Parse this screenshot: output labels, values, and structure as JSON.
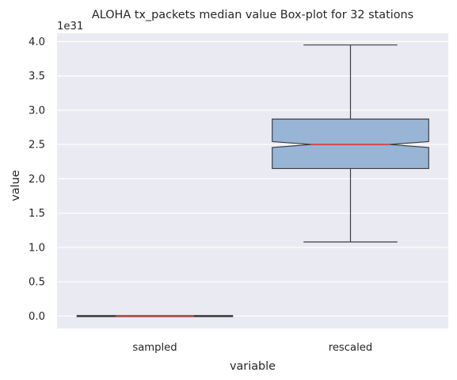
{
  "chart_data": {
    "type": "box",
    "title": "ALOHA tx_packets median value Box-plot for 32 stations",
    "xlabel": "variable",
    "ylabel": "value",
    "offset_text": "1e31",
    "categories": [
      "sampled",
      "rescaled"
    ],
    "y_ticks": [
      "0.0",
      "0.5",
      "1.0",
      "1.5",
      "2.0",
      "2.5",
      "3.0",
      "3.5",
      "4.0"
    ],
    "y_tick_values": [
      0,
      0.5,
      1.0,
      1.5,
      2.0,
      2.5,
      3.0,
      3.5,
      4.0
    ],
    "ylim": [
      -0.18,
      4.12
    ],
    "y_scale_factor": 1e+31,
    "notched": true,
    "boxes": [
      {
        "category": "sampled",
        "min": 0.0,
        "q1": 0.0,
        "median": 0.0,
        "q3": 0.005,
        "max": 0.005
      },
      {
        "category": "rescaled",
        "min": 1.08,
        "q1": 2.15,
        "median": 2.5,
        "q3": 2.87,
        "max": 3.95
      }
    ],
    "grid": true,
    "legend": "none",
    "colors": {
      "background": "#eaeaf2",
      "grid": "#ffffff",
      "box_fill": "#98b5d6",
      "box_edge": "#3f3f3f",
      "median": "#d9484d"
    }
  }
}
